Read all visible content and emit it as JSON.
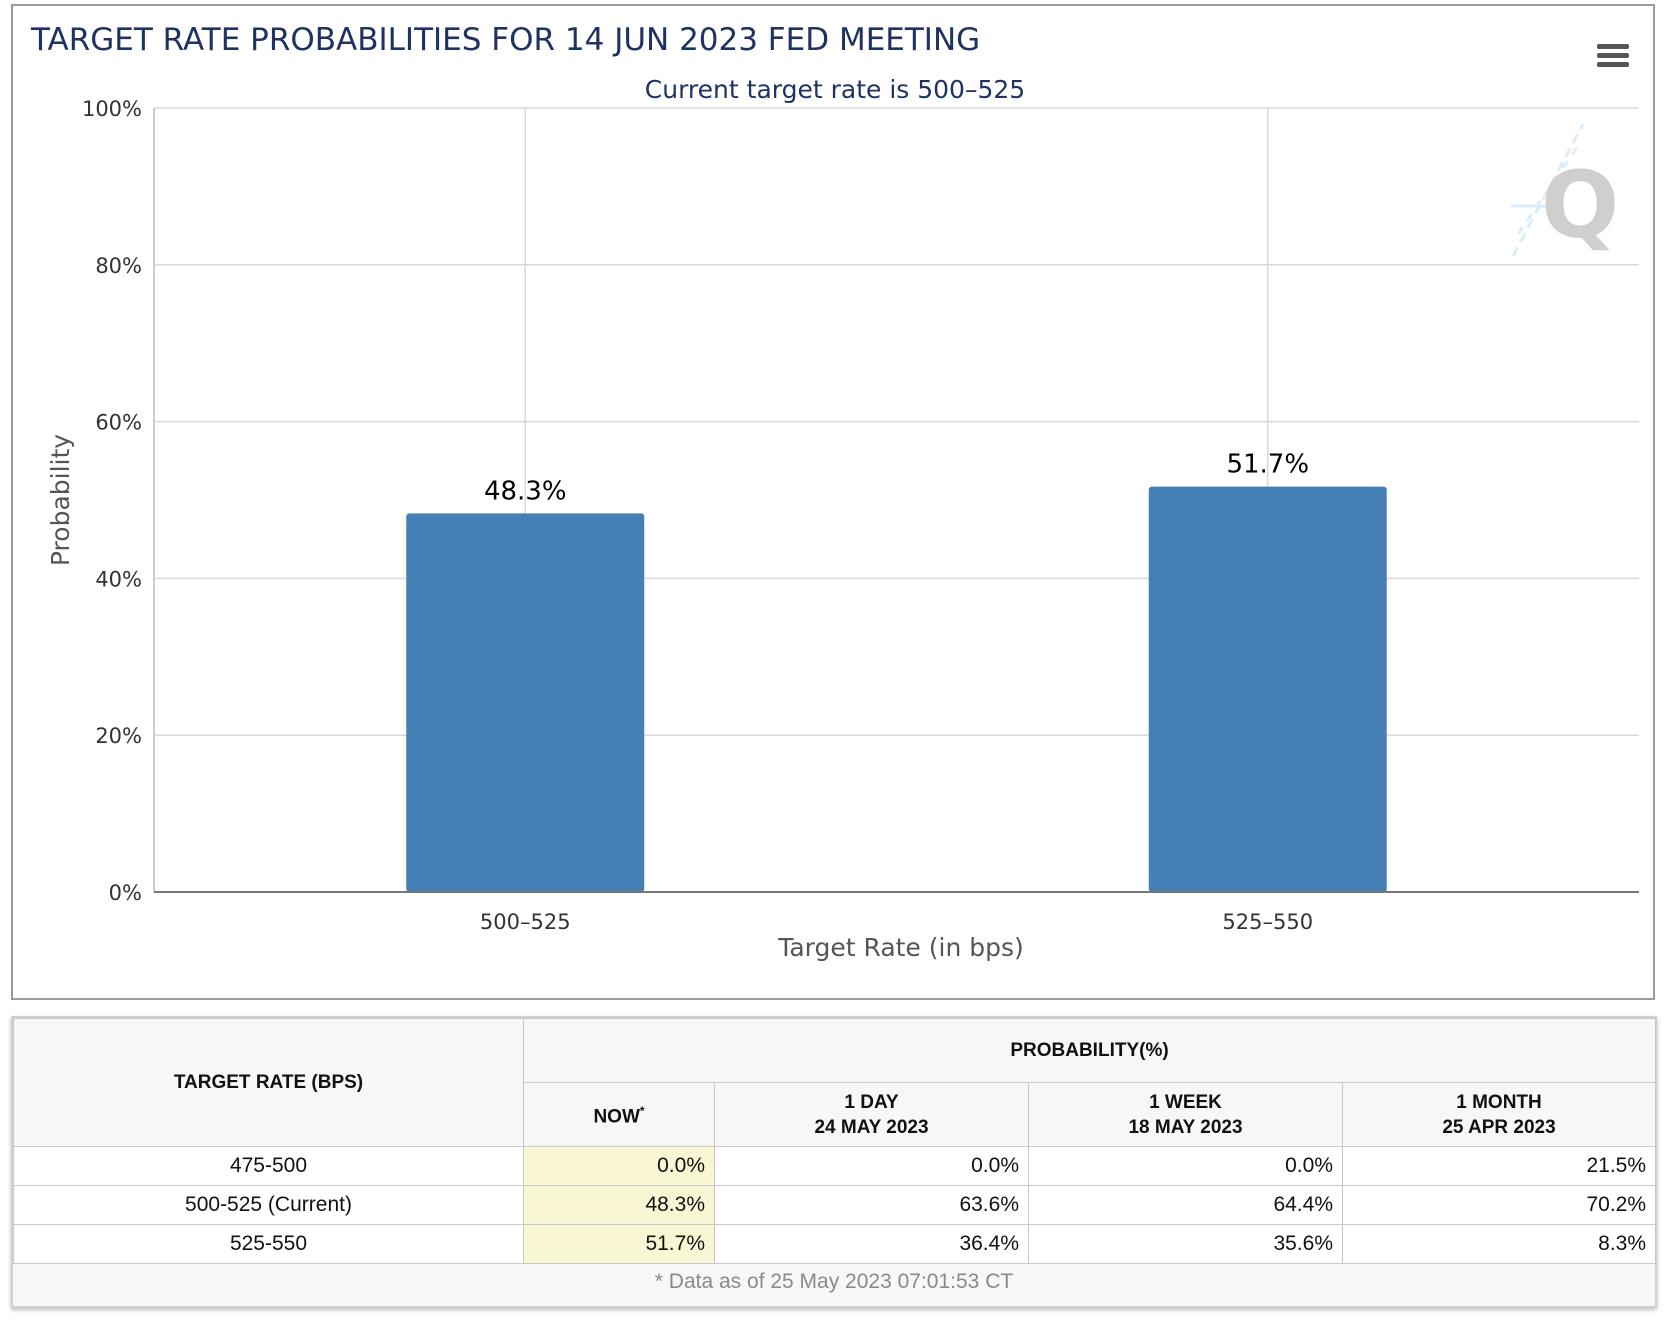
{
  "chart_data": {
    "type": "bar",
    "title": "TARGET RATE PROBABILITIES FOR 14 JUN 2023 FED MEETING",
    "subtitle": "Current target rate is 500–525",
    "categories": [
      "500–525",
      "525–550"
    ],
    "values": [
      48.3,
      51.7
    ],
    "data_labels": [
      "48.3%",
      "51.7%"
    ],
    "xlabel": "Target Rate (in bps)",
    "ylabel": "Probability",
    "ylim": [
      0,
      100
    ],
    "yticks": [
      0,
      20,
      40,
      60,
      80,
      100
    ],
    "ytick_labels": [
      "0%",
      "20%",
      "40%",
      "60%",
      "80%",
      "100%"
    ],
    "grid": true,
    "bar_color": "#4480b6"
  },
  "watermark": {
    "letter": "Q"
  },
  "menu": {
    "icon": "hamburger-menu-icon"
  },
  "table": {
    "rate_header": "TARGET RATE (BPS)",
    "prob_header": "PROBABILITY(%)",
    "now_header": "NOW",
    "now_marker": "*",
    "col_1day": {
      "label": "1 DAY",
      "date": "24 MAY 2023"
    },
    "col_1week": {
      "label": "1 WEEK",
      "date": "18 MAY 2023"
    },
    "col_1month": {
      "label": "1 MONTH",
      "date": "25 APR 2023"
    },
    "rows": [
      {
        "rate": "475-500",
        "now": "0.0%",
        "day": "0.0%",
        "week": "0.0%",
        "month": "21.5%"
      },
      {
        "rate": "500-525 (Current)",
        "now": "48.3%",
        "day": "63.6%",
        "week": "64.4%",
        "month": "70.2%"
      },
      {
        "rate": "525-550",
        "now": "51.7%",
        "day": "36.4%",
        "week": "35.6%",
        "month": "8.3%"
      }
    ],
    "footnote": "* Data as of 25 May 2023 07:01:53 CT"
  }
}
